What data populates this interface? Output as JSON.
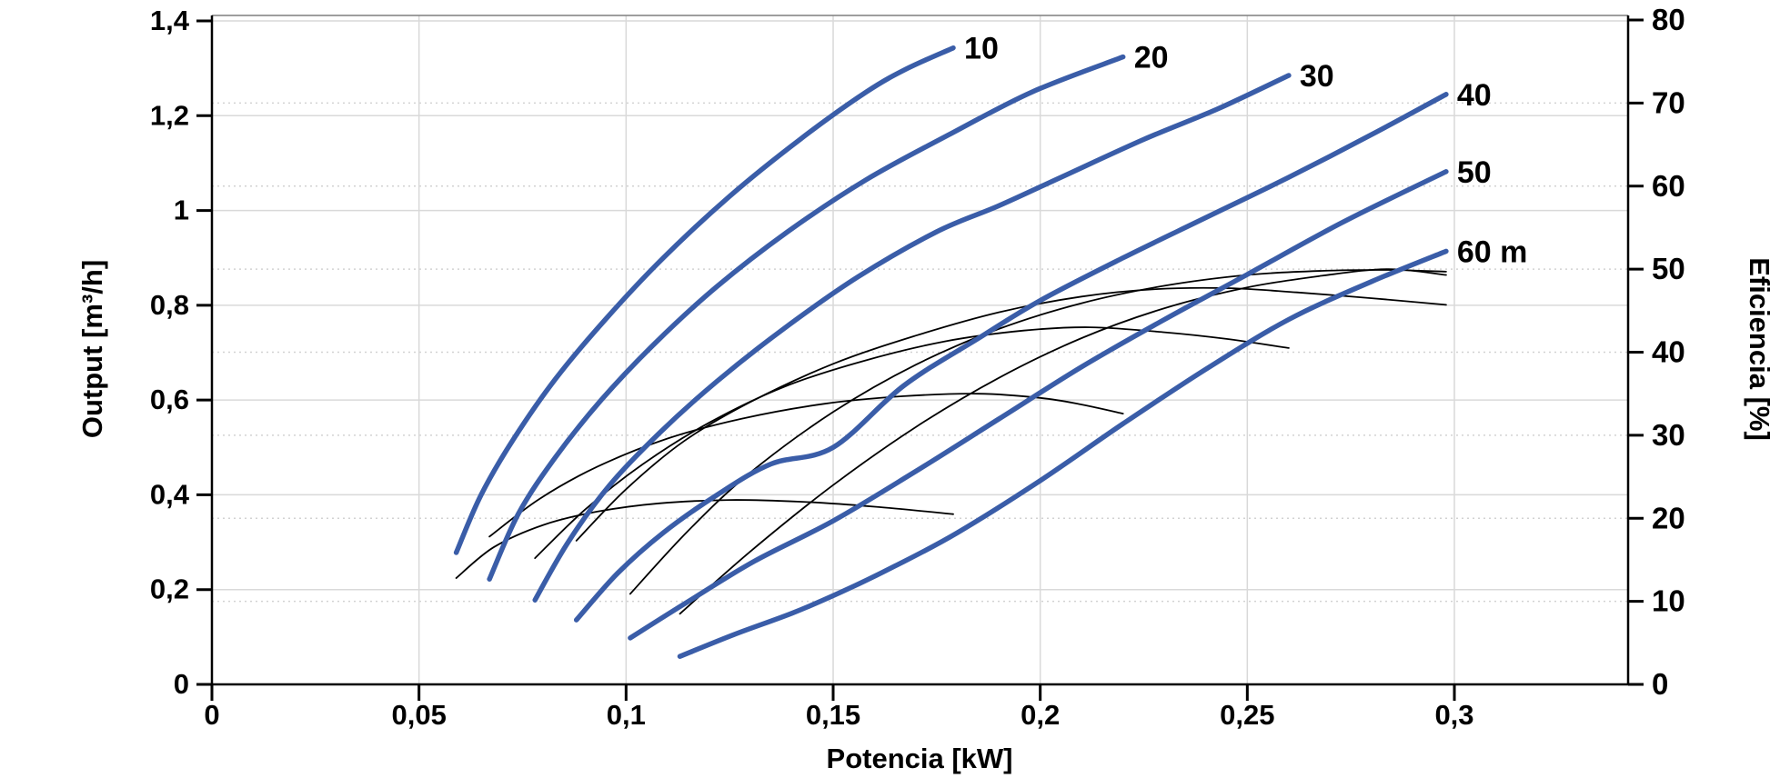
{
  "chart_data": {
    "type": "line",
    "title": "",
    "xlabel": "Potencia [kW]",
    "ylabel_left": "Output [m³/h]",
    "ylabel_right": "Eficiencia [%]",
    "xlim": [
      0,
      0.342
    ],
    "ylim_left": [
      0,
      1.4
    ],
    "ylim_right": [
      0,
      80
    ],
    "grid": {
      "solid_horizontal_step_left_axis": 0.2,
      "dotted_horizontal_step_right_axis": 10,
      "solid_vertical_step": 0.05
    },
    "legend_position": "none",
    "colors": {
      "head_curve": "#3a5da8",
      "efficiency_curve": "#000000",
      "grid_solid": "#d9d9d9",
      "grid_dotted": "#d2d2d2",
      "axis": "#000000",
      "frame_top": "#7f7f7f",
      "background": "#ffffff"
    },
    "x_ticks": [
      {
        "v": 0.0,
        "label": "0"
      },
      {
        "v": 0.05,
        "label": "0,05"
      },
      {
        "v": 0.1,
        "label": "0,1"
      },
      {
        "v": 0.15,
        "label": "0,15"
      },
      {
        "v": 0.2,
        "label": "0,2"
      },
      {
        "v": 0.25,
        "label": "0,25"
      },
      {
        "v": 0.3,
        "label": "0,3"
      }
    ],
    "y_left_ticks": [
      {
        "v": 0.0,
        "label": "0"
      },
      {
        "v": 0.2,
        "label": "0,2"
      },
      {
        "v": 0.4,
        "label": "0,4"
      },
      {
        "v": 0.6,
        "label": "0,6"
      },
      {
        "v": 0.8,
        "label": "0,8"
      },
      {
        "v": 1.0,
        "label": "1"
      },
      {
        "v": 1.2,
        "label": "1,2"
      },
      {
        "v": 1.4,
        "label": "1,4"
      }
    ],
    "y_right_ticks": [
      {
        "v": 0,
        "label": "0"
      },
      {
        "v": 10,
        "label": "10"
      },
      {
        "v": 20,
        "label": "20"
      },
      {
        "v": 30,
        "label": "30"
      },
      {
        "v": 40,
        "label": "40"
      },
      {
        "v": 50,
        "label": "50"
      },
      {
        "v": 60,
        "label": "60"
      },
      {
        "v": 70,
        "label": "70"
      },
      {
        "v": 80,
        "label": "80"
      }
    ],
    "head_curves": [
      {
        "label": "10",
        "head_m": 10,
        "points": [
          [
            0.059,
            0.278
          ],
          [
            0.065,
            0.4
          ],
          [
            0.073,
            0.52
          ],
          [
            0.083,
            0.645
          ],
          [
            0.095,
            0.77
          ],
          [
            0.109,
            0.9
          ],
          [
            0.125,
            1.03
          ],
          [
            0.142,
            1.15
          ],
          [
            0.158,
            1.25
          ],
          [
            0.168,
            1.3
          ],
          [
            0.179,
            1.343
          ]
        ]
      },
      {
        "label": "20",
        "head_m": 20,
        "points": [
          [
            0.067,
            0.222
          ],
          [
            0.074,
            0.36
          ],
          [
            0.083,
            0.48
          ],
          [
            0.094,
            0.6
          ],
          [
            0.107,
            0.72
          ],
          [
            0.122,
            0.84
          ],
          [
            0.139,
            0.955
          ],
          [
            0.158,
            1.065
          ],
          [
            0.178,
            1.16
          ],
          [
            0.198,
            1.25
          ],
          [
            0.22,
            1.324
          ]
        ]
      },
      {
        "label": "30",
        "head_m": 30,
        "points": [
          [
            0.078,
            0.178
          ],
          [
            0.086,
            0.3
          ],
          [
            0.096,
            0.42
          ],
          [
            0.108,
            0.53
          ],
          [
            0.122,
            0.64
          ],
          [
            0.138,
            0.75
          ],
          [
            0.156,
            0.86
          ],
          [
            0.175,
            0.955
          ],
          [
            0.19,
            1.01
          ],
          [
            0.205,
            1.07
          ],
          [
            0.225,
            1.15
          ],
          [
            0.243,
            1.215
          ],
          [
            0.26,
            1.285
          ]
        ]
      },
      {
        "label": "40",
        "head_m": 40,
        "points": [
          [
            0.088,
            0.136
          ],
          [
            0.098,
            0.235
          ],
          [
            0.109,
            0.32
          ],
          [
            0.122,
            0.4
          ],
          [
            0.135,
            0.465
          ],
          [
            0.15,
            0.5
          ],
          [
            0.167,
            0.63
          ],
          [
            0.185,
            0.73
          ],
          [
            0.2,
            0.81
          ],
          [
            0.22,
            0.9
          ],
          [
            0.24,
            0.985
          ],
          [
            0.26,
            1.07
          ],
          [
            0.28,
            1.16
          ],
          [
            0.298,
            1.245
          ]
        ]
      },
      {
        "label": "50",
        "head_m": 50,
        "points": [
          [
            0.101,
            0.098
          ],
          [
            0.115,
            0.175
          ],
          [
            0.131,
            0.26
          ],
          [
            0.15,
            0.345
          ],
          [
            0.17,
            0.45
          ],
          [
            0.19,
            0.56
          ],
          [
            0.21,
            0.67
          ],
          [
            0.23,
            0.77
          ],
          [
            0.25,
            0.865
          ],
          [
            0.273,
            0.975
          ],
          [
            0.298,
            1.082
          ]
        ]
      },
      {
        "label": "60 m",
        "head_m": 60,
        "points": [
          [
            0.113,
            0.059
          ],
          [
            0.126,
            0.105
          ],
          [
            0.14,
            0.15
          ],
          [
            0.152,
            0.195
          ],
          [
            0.165,
            0.25
          ],
          [
            0.18,
            0.32
          ],
          [
            0.2,
            0.43
          ],
          [
            0.22,
            0.55
          ],
          [
            0.24,
            0.665
          ],
          [
            0.26,
            0.77
          ],
          [
            0.28,
            0.85
          ],
          [
            0.298,
            0.914
          ]
        ]
      }
    ],
    "efficiency_curves": [
      {
        "head_m": 10,
        "points": [
          [
            0.059,
            12.8
          ],
          [
            0.068,
            16.5
          ],
          [
            0.08,
            19.2
          ],
          [
            0.093,
            20.8
          ],
          [
            0.108,
            21.8
          ],
          [
            0.125,
            22.2
          ],
          [
            0.142,
            22.0
          ],
          [
            0.16,
            21.4
          ],
          [
            0.179,
            20.5
          ]
        ]
      },
      {
        "head_m": 20,
        "points": [
          [
            0.067,
            17.8
          ],
          [
            0.079,
            22.3
          ],
          [
            0.093,
            26.2
          ],
          [
            0.11,
            29.6
          ],
          [
            0.128,
            32.0
          ],
          [
            0.148,
            33.8
          ],
          [
            0.167,
            34.7
          ],
          [
            0.185,
            35.0
          ],
          [
            0.2,
            34.5
          ],
          [
            0.21,
            33.7
          ],
          [
            0.22,
            32.6
          ]
        ]
      },
      {
        "head_m": 30,
        "points": [
          [
            0.078,
            15.2
          ],
          [
            0.09,
            21.0
          ],
          [
            0.104,
            26.5
          ],
          [
            0.12,
            31.5
          ],
          [
            0.138,
            35.8
          ],
          [
            0.157,
            38.9
          ],
          [
            0.177,
            41.3
          ],
          [
            0.196,
            42.6
          ],
          [
            0.212,
            43.0
          ],
          [
            0.23,
            42.4
          ],
          [
            0.245,
            41.6
          ],
          [
            0.26,
            40.5
          ]
        ]
      },
      {
        "head_m": 40,
        "points": [
          [
            0.088,
            17.3
          ],
          [
            0.1,
            23.5
          ],
          [
            0.114,
            29.3
          ],
          [
            0.13,
            34.0
          ],
          [
            0.15,
            38.6
          ],
          [
            0.17,
            42.0
          ],
          [
            0.19,
            44.8
          ],
          [
            0.21,
            46.7
          ],
          [
            0.228,
            47.6
          ],
          [
            0.246,
            47.7
          ],
          [
            0.262,
            47.2
          ],
          [
            0.28,
            46.5
          ],
          [
            0.298,
            45.7
          ]
        ]
      },
      {
        "head_m": 50,
        "points": [
          [
            0.101,
            10.9
          ],
          [
            0.115,
            18.5
          ],
          [
            0.13,
            25.5
          ],
          [
            0.15,
            32.8
          ],
          [
            0.17,
            38.5
          ],
          [
            0.19,
            42.8
          ],
          [
            0.21,
            45.9
          ],
          [
            0.23,
            48.0
          ],
          [
            0.25,
            49.3
          ],
          [
            0.268,
            49.8
          ],
          [
            0.284,
            49.9
          ],
          [
            0.298,
            49.7
          ]
        ]
      },
      {
        "head_m": 60,
        "points": [
          [
            0.113,
            8.5
          ],
          [
            0.13,
            16.0
          ],
          [
            0.15,
            24.0
          ],
          [
            0.17,
            31.0
          ],
          [
            0.19,
            36.9
          ],
          [
            0.21,
            41.7
          ],
          [
            0.23,
            45.3
          ],
          [
            0.25,
            47.8
          ],
          [
            0.268,
            49.2
          ],
          [
            0.284,
            50.0
          ],
          [
            0.298,
            49.3
          ]
        ]
      }
    ]
  }
}
